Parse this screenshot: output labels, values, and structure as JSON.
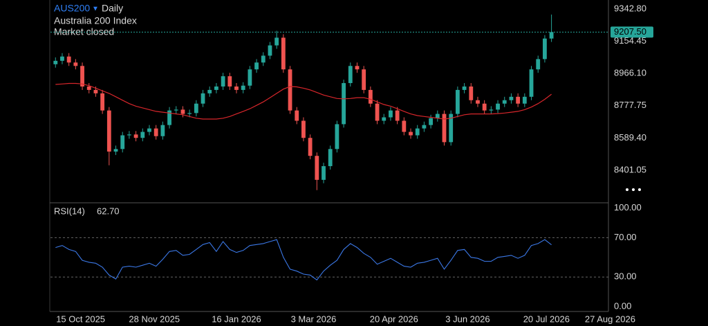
{
  "chart_data": [
    {
      "type": "candlestick",
      "symbol": "AUS200",
      "interval": "Daily",
      "name": "Australia 200 Index",
      "status": "Market closed",
      "x": [
        "2025-09-30",
        "2025-10-04",
        "2025-10-08",
        "2025-10-12",
        "2025-10-16",
        "2025-10-20",
        "2025-10-24",
        "2025-10-28",
        "2025-11-01",
        "2025-11-05",
        "2025-11-09",
        "2025-11-13",
        "2025-11-17",
        "2025-11-21",
        "2025-11-25",
        "2025-11-29",
        "2025-12-03",
        "2025-12-07",
        "2025-12-11",
        "2025-12-15",
        "2025-12-19",
        "2025-12-23",
        "2025-12-27",
        "2025-12-31",
        "2026-01-04",
        "2026-01-08",
        "2026-01-12",
        "2026-01-16",
        "2026-01-20",
        "2026-01-24",
        "2026-01-28",
        "2026-02-01",
        "2026-02-05",
        "2026-02-09",
        "2026-02-13",
        "2026-02-17",
        "2026-02-21",
        "2026-02-25",
        "2026-03-01",
        "2026-03-05",
        "2026-03-09",
        "2026-03-13",
        "2026-03-17",
        "2026-03-21",
        "2026-03-25",
        "2026-03-29",
        "2026-04-02",
        "2026-04-06",
        "2026-04-10",
        "2026-04-14",
        "2026-04-18",
        "2026-04-22",
        "2026-04-26",
        "2026-04-30",
        "2026-05-04",
        "2026-05-08",
        "2026-05-12",
        "2026-05-16",
        "2026-05-20",
        "2026-05-24",
        "2026-05-28",
        "2026-06-01",
        "2026-06-05",
        "2026-06-09",
        "2026-06-13",
        "2026-06-17",
        "2026-06-21",
        "2026-06-25",
        "2026-06-29",
        "2026-07-03",
        "2026-07-07",
        "2026-07-11",
        "2026-07-15",
        "2026-07-19",
        "2026-07-23"
      ],
      "open": [
        9020,
        9040,
        9065,
        9030,
        9010,
        8890,
        8870,
        8850,
        8750,
        8510,
        8525,
        8605,
        8610,
        8590,
        8625,
        8645,
        8600,
        8665,
        8750,
        8755,
        8730,
        8735,
        8790,
        8850,
        8870,
        8890,
        8950,
        8890,
        8870,
        8895,
        8990,
        9030,
        9070,
        9130,
        9175,
        8990,
        8750,
        8690,
        8590,
        8485,
        8345,
        8425,
        8525,
        8670,
        8910,
        9010,
        8990,
        8870,
        8790,
        8690,
        8710,
        8750,
        8690,
        8625,
        8605,
        8645,
        8665,
        8705,
        8730,
        8565,
        8730,
        8870,
        8890,
        8810,
        8790,
        8750,
        8755,
        8790,
        8810,
        8830,
        8790,
        8830,
        8990,
        9050,
        9170
      ],
      "high": [
        9060,
        9085,
        9085,
        9050,
        9030,
        8910,
        8890,
        8870,
        8770,
        8545,
        8625,
        8630,
        8630,
        8645,
        8665,
        8665,
        8685,
        8770,
        8775,
        8775,
        8755,
        8810,
        8870,
        8890,
        8910,
        8970,
        8970,
        8910,
        8915,
        9010,
        9050,
        9090,
        9150,
        9215,
        9195,
        9010,
        8770,
        8710,
        8610,
        8505,
        8445,
        8545,
        8690,
        8930,
        9030,
        9030,
        9010,
        8890,
        8810,
        8730,
        8770,
        8770,
        8710,
        8645,
        8665,
        8685,
        8725,
        8750,
        8750,
        8750,
        8890,
        8910,
        8910,
        8830,
        8810,
        8775,
        8810,
        8830,
        8850,
        8850,
        8850,
        9010,
        9070,
        9190,
        9310
      ],
      "low": [
        9000,
        9020,
        9010,
        8990,
        8870,
        8850,
        8830,
        8730,
        8430,
        8490,
        8505,
        8585,
        8570,
        8570,
        8605,
        8580,
        8580,
        8645,
        8730,
        8710,
        8710,
        8715,
        8770,
        8830,
        8850,
        8870,
        8870,
        8850,
        8850,
        8875,
        8970,
        9010,
        9050,
        9110,
        8970,
        8730,
        8670,
        8570,
        8465,
        8285,
        8325,
        8405,
        8505,
        8650,
        8890,
        8970,
        8850,
        8770,
        8670,
        8670,
        8690,
        8670,
        8605,
        8585,
        8585,
        8625,
        8645,
        8685,
        8545,
        8545,
        8710,
        8850,
        8790,
        8770,
        8730,
        8730,
        8735,
        8770,
        8790,
        8770,
        8770,
        8810,
        8970,
        9030,
        9150
      ],
      "close": [
        9040,
        9065,
        9030,
        9010,
        8890,
        8870,
        8850,
        8750,
        8510,
        8525,
        8605,
        8610,
        8590,
        8625,
        8645,
        8600,
        8665,
        8750,
        8755,
        8730,
        8735,
        8790,
        8850,
        8870,
        8890,
        8950,
        8890,
        8870,
        8895,
        8990,
        9030,
        9070,
        9130,
        9175,
        8990,
        8750,
        8690,
        8590,
        8485,
        8345,
        8425,
        8525,
        8670,
        8910,
        9010,
        8990,
        8870,
        8790,
        8690,
        8710,
        8750,
        8690,
        8625,
        8605,
        8645,
        8665,
        8705,
        8730,
        8565,
        8730,
        8870,
        8890,
        8810,
        8790,
        8750,
        8755,
        8790,
        8810,
        8830,
        8790,
        8830,
        8990,
        9050,
        9170,
        9207.5
      ],
      "up_color": "#26a69a",
      "down_color": "#ef5350",
      "ma": {
        "color": "#d8262b",
        "values": [
          8902,
          8905,
          8908,
          8908,
          8905,
          8895,
          8880,
          8865,
          8850,
          8830,
          8810,
          8790,
          8775,
          8765,
          8755,
          8745,
          8740,
          8735,
          8730,
          8725,
          8715,
          8705,
          8700,
          8700,
          8700,
          8705,
          8715,
          8730,
          8745,
          8760,
          8780,
          8800,
          8825,
          8850,
          8875,
          8890,
          8888,
          8880,
          8870,
          8855,
          8840,
          8830,
          8820,
          8818,
          8820,
          8825,
          8825,
          8815,
          8800,
          8785,
          8775,
          8760,
          8745,
          8730,
          8720,
          8715,
          8710,
          8705,
          8700,
          8705,
          8715,
          8725,
          8730,
          8730,
          8730,
          8730,
          8732,
          8735,
          8740,
          8745,
          8755,
          8770,
          8790,
          8815,
          8845
        ]
      },
      "last_price": {
        "value": 9207.5,
        "label": "9207.50"
      },
      "last_price_color": "#26a69a",
      "xlim": [
        "2025-09-27",
        "2026-08-26"
      ],
      "xticks": [
        {
          "value": "2025-10-15",
          "label": "15 Oct 2025"
        },
        {
          "value": "2025-11-28",
          "label": "28 Nov 2025"
        },
        {
          "value": "2026-01-16",
          "label": "16 Jan 2026"
        },
        {
          "value": "2026-03-03",
          "label": "3 Mar 2026"
        },
        {
          "value": "2026-04-20",
          "label": "20 Apr 2026"
        },
        {
          "value": "2026-06-03",
          "label": "3 Jun 2026"
        },
        {
          "value": "2026-07-20",
          "label": "20 Jul 2026"
        },
        {
          "value": "2026-08-27",
          "label": "27 Aug 2026"
        }
      ],
      "ylim": [
        8211,
        9395
      ],
      "yticks": [
        {
          "value": 9342.8,
          "label": "9342.80"
        },
        {
          "value": 9154.45,
          "label": "9154.45"
        },
        {
          "value": 8966.1,
          "label": "8966.10"
        },
        {
          "value": 8777.75,
          "label": "8777.75"
        },
        {
          "value": 8589.4,
          "label": "8589.40"
        },
        {
          "value": 8401.05,
          "label": "8401.05"
        }
      ],
      "grid": false
    },
    {
      "type": "line",
      "title": "RSI(14)",
      "last_value": {
        "value": 62.7,
        "label": "62.70"
      },
      "color": "#3b78e7",
      "values": [
        60,
        62,
        58,
        56,
        47,
        45,
        44,
        40,
        32,
        28,
        40,
        41,
        40,
        42,
        44,
        41,
        48,
        56,
        57,
        52,
        53,
        58,
        63,
        65,
        56,
        66,
        58,
        55,
        57,
        62,
        63,
        64,
        66,
        68,
        50,
        38,
        36,
        33,
        32,
        27,
        36,
        42,
        47,
        58,
        64,
        60,
        54,
        50,
        43,
        46,
        49,
        45,
        41,
        40,
        44,
        45,
        47,
        49,
        38,
        47,
        57,
        58,
        50,
        49,
        46,
        46,
        50,
        51,
        52,
        49,
        52,
        62,
        64,
        68,
        62.7
      ],
      "ylim": [
        -5,
        104
      ],
      "yticks": [
        {
          "value": 100,
          "label": "100.00"
        },
        {
          "value": 70,
          "label": "70.00"
        },
        {
          "value": 30,
          "label": "30.00"
        },
        {
          "value": 0,
          "label": "0.00"
        }
      ],
      "levels": [
        70,
        30
      ]
    }
  ]
}
